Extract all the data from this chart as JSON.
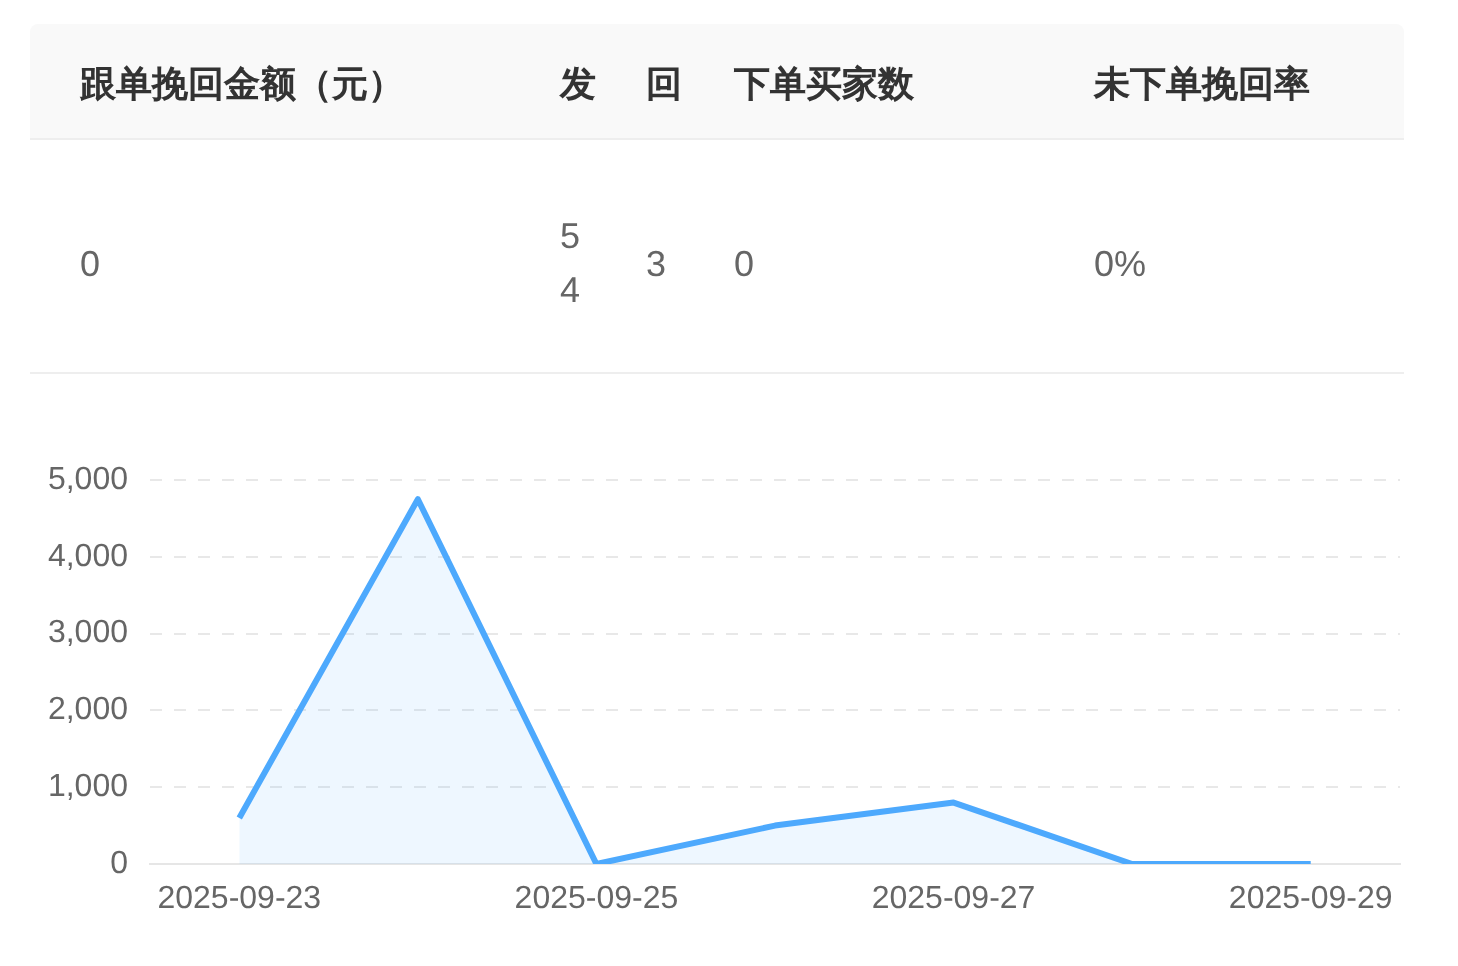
{
  "chart_data": [
    {
      "type": "other",
      "categories": [
        "跟单挽回金额（元）",
        "发",
        "回",
        "下单买家数",
        "未下单挽回率"
      ],
      "annotations": [
        "0",
        "54",
        "3",
        "0",
        "0%"
      ]
    },
    {
      "type": "area",
      "categories": [
        "2025-09-23",
        null,
        "2025-09-25",
        null,
        "2025-09-27",
        null,
        "2025-09-29"
      ],
      "series": [
        {
          "color": "#4da9fd",
          "values": [
            600,
            4750,
            0,
            500,
            800,
            0,
            0
          ]
        }
      ],
      "ylim": [
        0,
        5000
      ],
      "yticks": [
        {
          "value": 0,
          "label": "0"
        },
        {
          "value": 1000,
          "label": "1,000"
        },
        {
          "value": 2000,
          "label": "2,000"
        },
        {
          "value": 3000,
          "label": "3,000"
        },
        {
          "value": 4000,
          "label": "4,000"
        },
        {
          "value": 5000,
          "label": "5,000"
        }
      ],
      "grid": "y",
      "legend": false
    }
  ]
}
